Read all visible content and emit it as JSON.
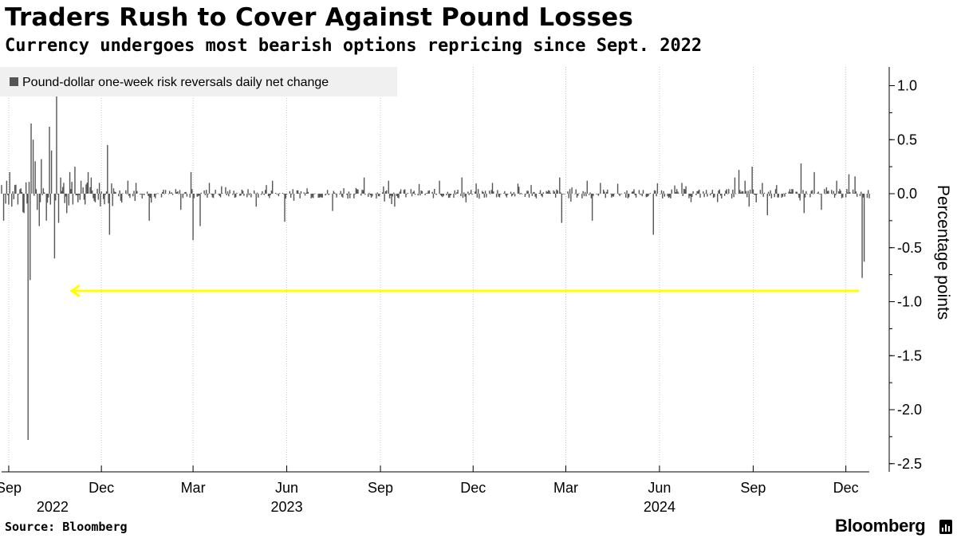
{
  "title": "Traders Rush to Cover Against Pound Losses",
  "subtitle": "Currency undergoes most bearish options repricing since Sept. 2022",
  "source": "Source: Bloomberg",
  "brand": "Bloomberg",
  "colors": {
    "bar": "#555555",
    "arrow": "#ffff00",
    "legend_bg": "#f0f0f0",
    "grid": "#c8c8c8"
  },
  "chart_data": {
    "type": "bar",
    "title": "Traders Rush to Cover Against Pound Losses",
    "subtitle": "Currency undergoes most bearish options repricing since Sept. 2022",
    "series_name": "Pound-dollar one-week risk reversals daily net change",
    "ylabel": "Percentage points",
    "xlabel": "",
    "ylim": [
      -2.5,
      1.2
    ],
    "yticks": [
      1.0,
      0.5,
      0.0,
      -0.5,
      -1.0,
      -1.5,
      -2.0,
      -2.5
    ],
    "ytick_labels": [
      "1.0",
      "0.5",
      "0.0",
      "-0.5",
      "-1.0",
      "-1.5",
      "-2.0",
      "-2.5"
    ],
    "x_range_days": [
      0,
      852
    ],
    "x_start_date": "2022-08-25",
    "xticks": [
      {
        "day": 7,
        "label": "Sep"
      },
      {
        "day": 98,
        "label": "Dec"
      },
      {
        "day": 188,
        "label": "Mar"
      },
      {
        "day": 280,
        "label": "Jun"
      },
      {
        "day": 372,
        "label": "Sep"
      },
      {
        "day": 463,
        "label": "Dec"
      },
      {
        "day": 554,
        "label": "Mar"
      },
      {
        "day": 646,
        "label": "Jun"
      },
      {
        "day": 738,
        "label": "Sep"
      },
      {
        "day": 829,
        "label": "Dec"
      }
    ],
    "year_labels": [
      {
        "day": 50,
        "label": "2022"
      },
      {
        "day": 280,
        "label": "2023"
      },
      {
        "day": 646,
        "label": "2024"
      }
    ],
    "legend_label": "Pound-dollar one-week risk reversals daily net change",
    "spikes": [
      {
        "day": 0,
        "value": 0.08
      },
      {
        "day": 2,
        "value": -0.25
      },
      {
        "day": 5,
        "value": 0.12
      },
      {
        "day": 8,
        "value": 0.2
      },
      {
        "day": 10,
        "value": -0.12
      },
      {
        "day": 13,
        "value": 0.08
      },
      {
        "day": 16,
        "value": -0.1
      },
      {
        "day": 19,
        "value": 0.05
      },
      {
        "day": 22,
        "value": -0.18
      },
      {
        "day": 26,
        "value": -2.28
      },
      {
        "day": 28,
        "value": -0.8
      },
      {
        "day": 29,
        "value": 0.65
      },
      {
        "day": 31,
        "value": 0.5
      },
      {
        "day": 33,
        "value": 0.3
      },
      {
        "day": 35,
        "value": -0.15
      },
      {
        "day": 37,
        "value": -0.3
      },
      {
        "day": 39,
        "value": 0.32
      },
      {
        "day": 41,
        "value": 0.05
      },
      {
        "day": 44,
        "value": -0.25
      },
      {
        "day": 47,
        "value": 0.62
      },
      {
        "day": 49,
        "value": 0.4
      },
      {
        "day": 52,
        "value": -0.6
      },
      {
        "day": 54,
        "value": 0.9
      },
      {
        "day": 56,
        "value": -0.27
      },
      {
        "day": 58,
        "value": 0.15
      },
      {
        "day": 61,
        "value": 0.1
      },
      {
        "day": 64,
        "value": -0.18
      },
      {
        "day": 67,
        "value": 0.2
      },
      {
        "day": 70,
        "value": -0.1
      },
      {
        "day": 72,
        "value": 0.25
      },
      {
        "day": 75,
        "value": -0.08
      },
      {
        "day": 78,
        "value": 0.12
      },
      {
        "day": 82,
        "value": -0.1
      },
      {
        "day": 85,
        "value": 0.2
      },
      {
        "day": 88,
        "value": 0.15
      },
      {
        "day": 92,
        "value": -0.08
      },
      {
        "day": 96,
        "value": 0.1
      },
      {
        "day": 100,
        "value": -0.05
      },
      {
        "day": 104,
        "value": 0.45
      },
      {
        "day": 106,
        "value": -0.38
      },
      {
        "day": 110,
        "value": 0.05
      },
      {
        "day": 116,
        "value": 0.03
      },
      {
        "day": 124,
        "value": 0.12
      },
      {
        "day": 132,
        "value": 0.1
      },
      {
        "day": 145,
        "value": -0.25
      },
      {
        "day": 176,
        "value": -0.15
      },
      {
        "day": 186,
        "value": 0.2
      },
      {
        "day": 188,
        "value": -0.43
      },
      {
        "day": 195,
        "value": -0.3
      },
      {
        "day": 204,
        "value": 0.1
      },
      {
        "day": 220,
        "value": 0.06
      },
      {
        "day": 250,
        "value": -0.12
      },
      {
        "day": 260,
        "value": 0.08
      },
      {
        "day": 266,
        "value": 0.12
      },
      {
        "day": 278,
        "value": -0.26
      },
      {
        "day": 300,
        "value": 0.05
      },
      {
        "day": 325,
        "value": -0.16
      },
      {
        "day": 356,
        "value": 0.15
      },
      {
        "day": 380,
        "value": 0.12
      },
      {
        "day": 386,
        "value": -0.12
      },
      {
        "day": 430,
        "value": 0.12
      },
      {
        "day": 452,
        "value": 0.15
      },
      {
        "day": 456,
        "value": -0.08
      },
      {
        "day": 482,
        "value": 0.1
      },
      {
        "day": 520,
        "value": 0.08
      },
      {
        "day": 548,
        "value": 0.15
      },
      {
        "day": 550,
        "value": -0.27
      },
      {
        "day": 575,
        "value": 0.12
      },
      {
        "day": 580,
        "value": -0.25
      },
      {
        "day": 588,
        "value": 0.1
      },
      {
        "day": 640,
        "value": -0.38
      },
      {
        "day": 668,
        "value": 0.1
      },
      {
        "day": 720,
        "value": 0.15
      },
      {
        "day": 724,
        "value": 0.22
      },
      {
        "day": 730,
        "value": 0.12
      },
      {
        "day": 734,
        "value": -0.12
      },
      {
        "day": 737,
        "value": 0.25
      },
      {
        "day": 741,
        "value": -0.08
      },
      {
        "day": 747,
        "value": 0.1
      },
      {
        "day": 752,
        "value": -0.2
      },
      {
        "day": 761,
        "value": 0.08
      },
      {
        "day": 785,
        "value": 0.28
      },
      {
        "day": 788,
        "value": -0.18
      },
      {
        "day": 798,
        "value": 0.2
      },
      {
        "day": 805,
        "value": -0.15
      },
      {
        "day": 820,
        "value": 0.12
      },
      {
        "day": 832,
        "value": 0.18
      },
      {
        "day": 838,
        "value": 0.16
      },
      {
        "day": 845,
        "value": -0.78
      },
      {
        "day": 847,
        "value": -0.63
      }
    ],
    "annotation": "arrow pointing left at level -0.9"
  }
}
